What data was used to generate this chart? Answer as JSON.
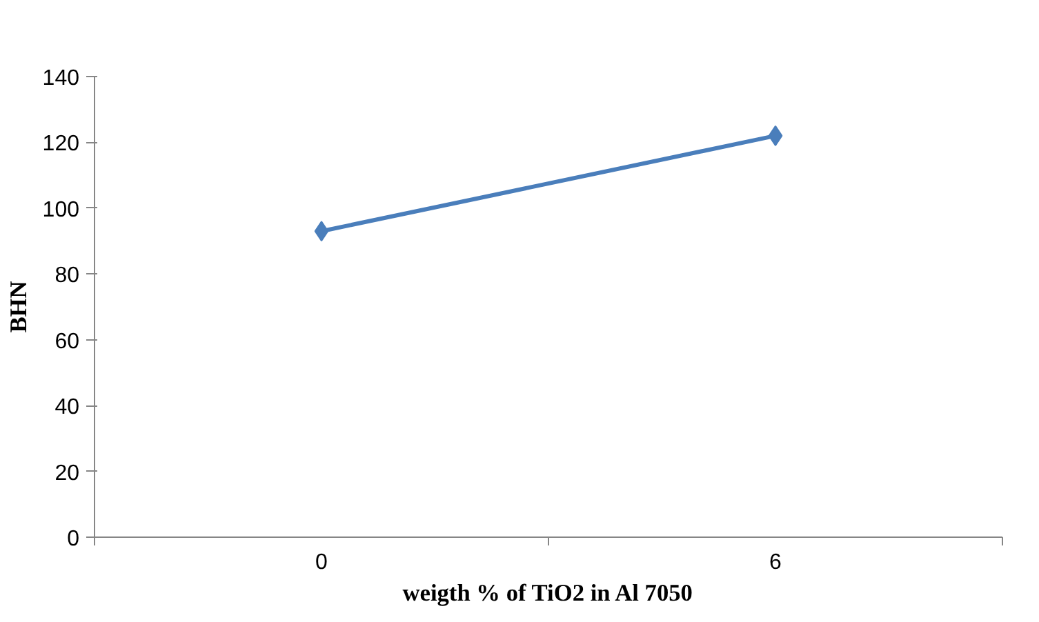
{
  "chart_data": {
    "type": "line",
    "xlabel": "weigth % of TiO2 in Al 7050",
    "ylabel": "BHN",
    "categories": [
      "0",
      "6"
    ],
    "series": [
      {
        "color": "#4a7ebb",
        "values": [
          93,
          122
        ]
      }
    ],
    "ylim": [
      0,
      140
    ],
    "yticks": [
      0,
      20,
      40,
      60,
      80,
      100,
      120,
      140
    ],
    "grid": false,
    "marker": "diamond",
    "line_style": "solid"
  }
}
